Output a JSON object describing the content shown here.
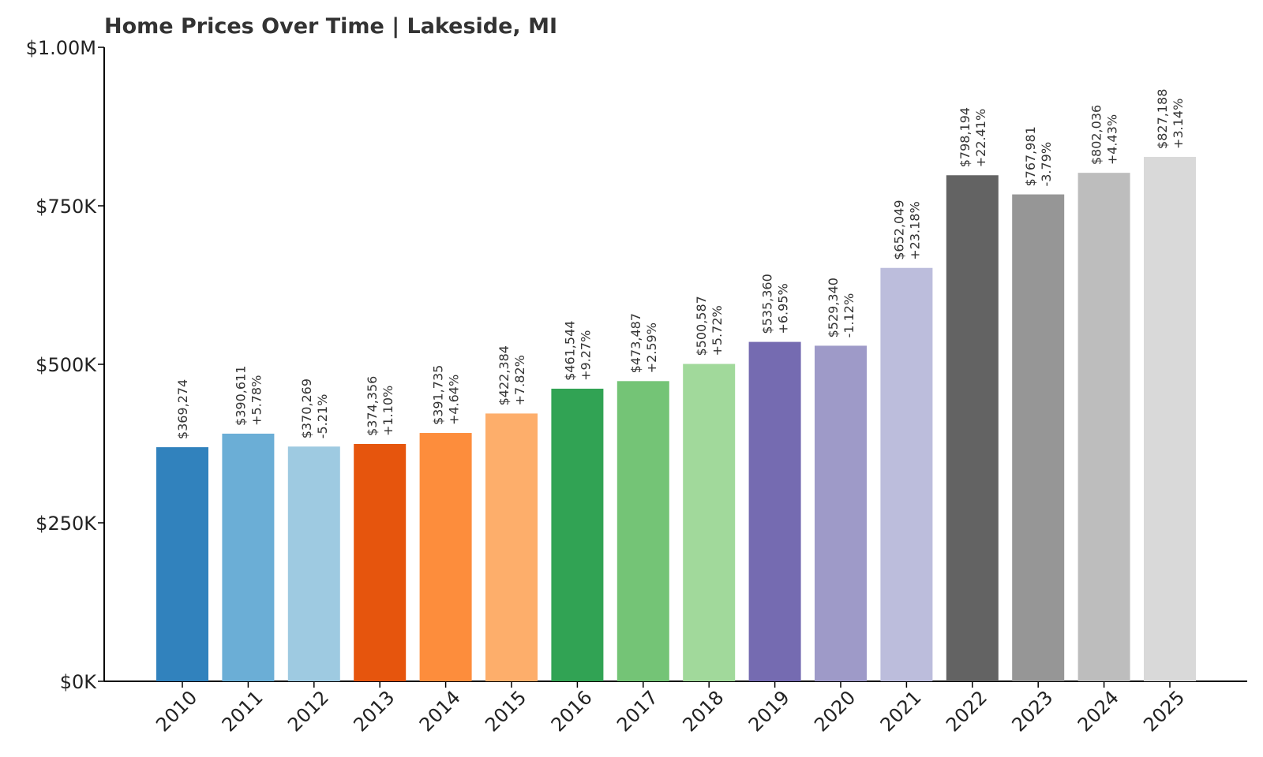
{
  "chart_data": {
    "type": "bar",
    "title": "Home Prices Over Time | Lakeside, MI",
    "xlabel": "",
    "ylabel": "",
    "ylim": [
      0,
      1000000
    ],
    "yticks": [
      0,
      250000,
      500000,
      750000,
      1000000
    ],
    "ytick_labels": [
      "$0K",
      "$250K",
      "$500K",
      "$750K",
      "$1.00M"
    ],
    "grid": false,
    "categories": [
      "2010",
      "2011",
      "2012",
      "2013",
      "2014",
      "2015",
      "2016",
      "2017",
      "2018",
      "2019",
      "2020",
      "2021",
      "2022",
      "2023",
      "2024",
      "2025"
    ],
    "values": [
      369274,
      390611,
      370269,
      374356,
      391735,
      422384,
      461544,
      473487,
      500587,
      535360,
      529340,
      652049,
      798194,
      767981,
      802036,
      827188
    ],
    "value_labels": [
      "$369,274",
      "$390,611",
      "$370,269",
      "$374,356",
      "$391,735",
      "$422,384",
      "$461,544",
      "$473,487",
      "$500,587",
      "$535,360",
      "$529,340",
      "$652,049",
      "$798,194",
      "$767,981",
      "$802,036",
      "$827,188"
    ],
    "change_labels": [
      "",
      "+5.78%",
      "-5.21%",
      "+1.10%",
      "+4.64%",
      "+7.82%",
      "+9.27%",
      "+2.59%",
      "+5.72%",
      "+6.95%",
      "-1.12%",
      "+23.18%",
      "+22.41%",
      "-3.79%",
      "+4.43%",
      "+3.14%"
    ],
    "colors": [
      "#3182bd",
      "#6baed6",
      "#9ecae1",
      "#e6550d",
      "#fd8d3c",
      "#fdae6b",
      "#31a354",
      "#74c476",
      "#a1d99b",
      "#756bb1",
      "#9e9ac8",
      "#bcbddc",
      "#636363",
      "#969696",
      "#bdbdbd",
      "#d9d9d9"
    ]
  }
}
